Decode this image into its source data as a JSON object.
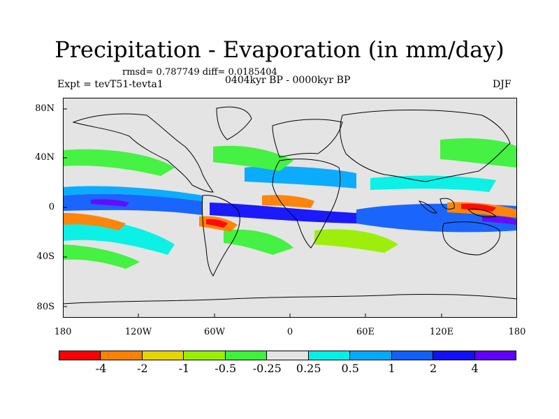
{
  "title": "Precipitation - Evaporation (in mm/day)",
  "stats": "rmsd= 0.787749 diff= 0.0185404",
  "period": "0404kyr BP - 0000kyr BP",
  "experiment": "Expt = tevT51-tevta1",
  "season": "DJF",
  "lat_labels": [
    "80N",
    "40N",
    "0",
    "40S",
    "80S"
  ],
  "lon_labels": [
    "180",
    "120W",
    "60W",
    "0",
    "60E",
    "120E",
    "180"
  ],
  "colorbar": {
    "colors": [
      "#ff0000",
      "#ff8000",
      "#e6d400",
      "#9aef00",
      "#3df23a",
      "#e4e4e4",
      "#00f2e6",
      "#00aaff",
      "#1060ff",
      "#1010ff",
      "#6000ff"
    ],
    "labels": [
      "-4",
      "-2",
      "-1",
      "-0.5",
      "-0.25",
      "0.25",
      "0.5",
      "1",
      "2",
      "4"
    ]
  },
  "background_color": "#e4e4e4"
}
